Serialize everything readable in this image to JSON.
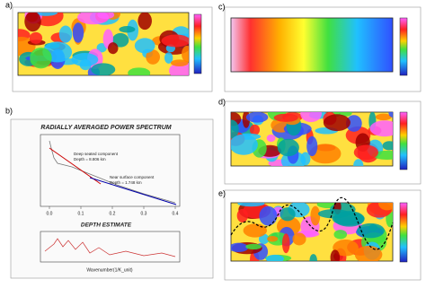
{
  "panels": [
    {
      "label": "a)"
    },
    {
      "label": "b)"
    },
    {
      "label": "c)"
    },
    {
      "label": "d)"
    },
    {
      "label": "e)"
    }
  ],
  "spectrum": {
    "title": "RADIALLY AVERAGED POWER SPECTRUM",
    "deep": [
      "Deep seated component",
      "Depth = 8.806 km"
    ],
    "near": [
      "Near surface component",
      "Depth = 1.748 km"
    ],
    "xticks": [
      "0.0",
      "0.1",
      "0.2",
      "0.3",
      "0.4"
    ],
    "depth_title": "DEPTH ESTIMATE",
    "x_label": "Wavenumber(1/K_unit)"
  }
}
